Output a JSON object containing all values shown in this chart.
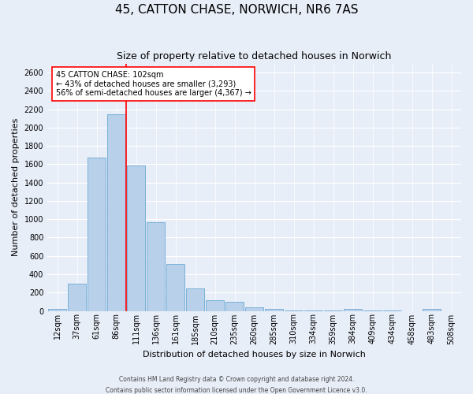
{
  "title": "45, CATTON CHASE, NORWICH, NR6 7AS",
  "subtitle": "Size of property relative to detached houses in Norwich",
  "xlabel": "Distribution of detached houses by size in Norwich",
  "ylabel": "Number of detached properties",
  "footer_line1": "Contains HM Land Registry data © Crown copyright and database right 2024.",
  "footer_line2": "Contains public sector information licensed under the Open Government Licence v3.0.",
  "annotation_title": "45 CATTON CHASE: 102sqm",
  "annotation_line2": "← 43% of detached houses are smaller (3,293)",
  "annotation_line3": "56% of semi-detached houses are larger (4,367) →",
  "bar_color": "#b8d0ea",
  "bar_edge_color": "#6aaad4",
  "vline_color": "red",
  "vline_x_index": 4,
  "categories": [
    "12sqm",
    "37sqm",
    "61sqm",
    "86sqm",
    "111sqm",
    "136sqm",
    "161sqm",
    "185sqm",
    "210sqm",
    "235sqm",
    "260sqm",
    "285sqm",
    "310sqm",
    "334sqm",
    "359sqm",
    "384sqm",
    "409sqm",
    "434sqm",
    "458sqm",
    "483sqm",
    "508sqm"
  ],
  "values": [
    20,
    300,
    1670,
    2150,
    1590,
    970,
    510,
    245,
    115,
    95,
    38,
    18,
    8,
    3,
    2,
    18,
    3,
    2,
    0,
    20,
    0
  ],
  "ylim": [
    0,
    2700
  ],
  "yticks": [
    0,
    200,
    400,
    600,
    800,
    1000,
    1200,
    1400,
    1600,
    1800,
    2000,
    2200,
    2400,
    2600
  ],
  "background_color": "#e8eef8",
  "grid_color": "white",
  "title_fontsize": 11,
  "subtitle_fontsize": 9,
  "xlabel_fontsize": 8,
  "ylabel_fontsize": 8,
  "tick_fontsize": 7,
  "annotation_fontsize": 7,
  "footer_fontsize": 5.5,
  "annotation_box_color": "white",
  "annotation_box_edgecolor": "red"
}
